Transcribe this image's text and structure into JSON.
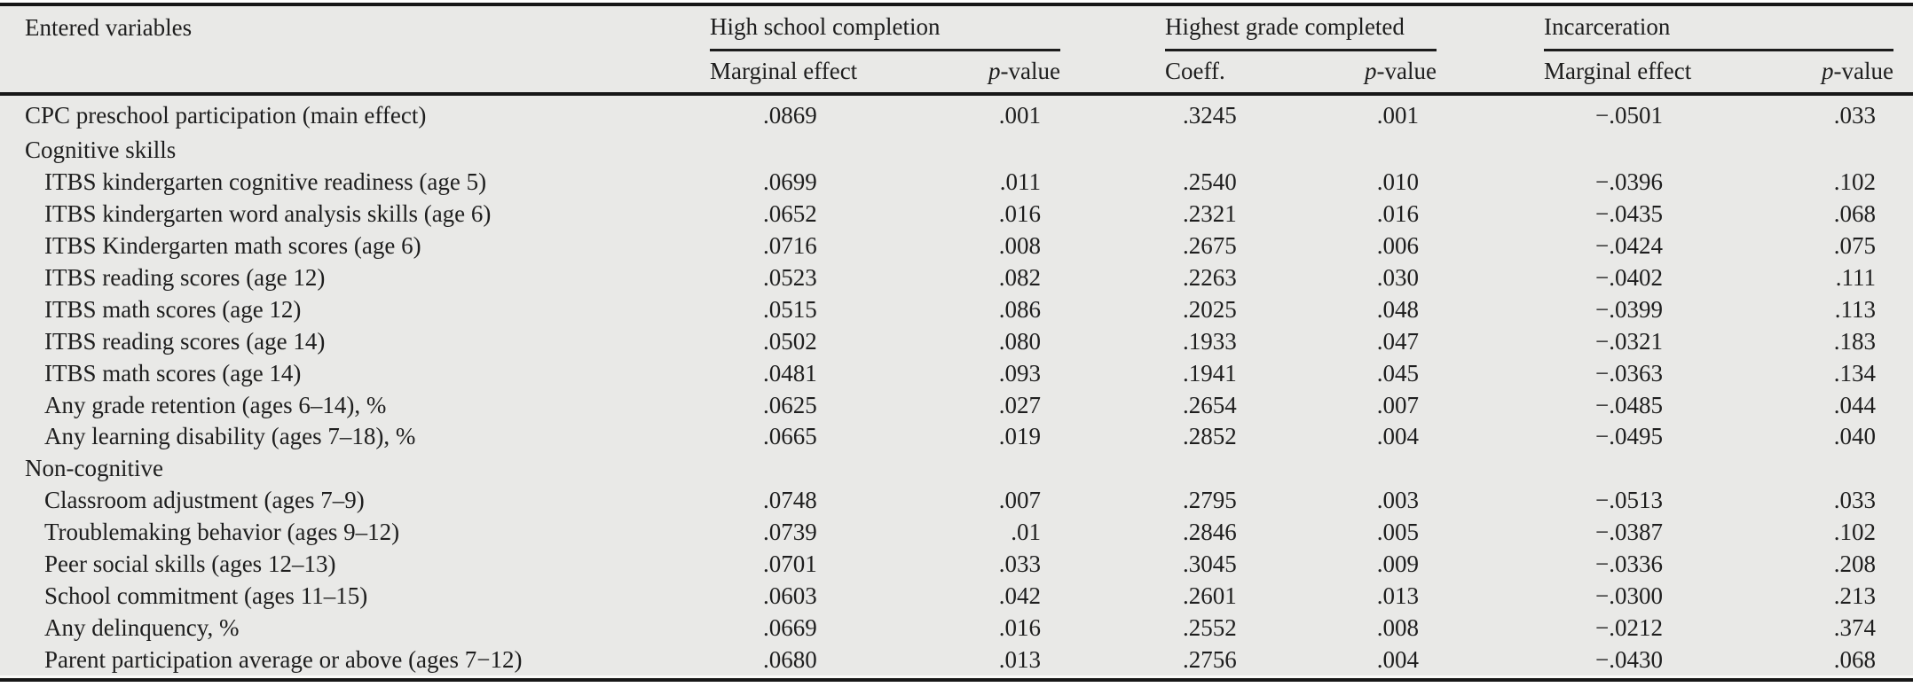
{
  "table": {
    "label_header": "Entered variables",
    "groups": [
      {
        "label": "High school completion",
        "sub1": "Marginal effect"
      },
      {
        "label": "Highest grade completed",
        "sub1": "Coeff."
      },
      {
        "label": "Incarceration",
        "sub1": "Marginal effect"
      }
    ],
    "pvalue_label": {
      "italic": "p",
      "rest": "-value"
    },
    "rows": [
      {
        "label": "CPC preschool participation (main effect)",
        "indent": 0,
        "values": [
          ".0869",
          ".001",
          ".3245",
          ".001",
          "−.0501",
          ".033"
        ]
      },
      {
        "label": "Cognitive skills",
        "indent": 0,
        "section": true
      },
      {
        "label": "ITBS kindergarten cognitive readiness (age 5)",
        "indent": 1,
        "values": [
          ".0699",
          ".011",
          ".2540",
          ".010",
          "−.0396",
          ".102"
        ]
      },
      {
        "label": "ITBS kindergarten word analysis skills (age 6)",
        "indent": 1,
        "values": [
          ".0652",
          ".016",
          ".2321",
          ".016",
          "−.0435",
          ".068"
        ]
      },
      {
        "label": "ITBS Kindergarten math scores (age 6)",
        "indent": 1,
        "values": [
          ".0716",
          ".008",
          ".2675",
          ".006",
          "−.0424",
          ".075"
        ]
      },
      {
        "label": "ITBS reading scores (age 12)",
        "indent": 1,
        "values": [
          ".0523",
          ".082",
          ".2263",
          ".030",
          "−.0402",
          ".111"
        ]
      },
      {
        "label": "ITBS math scores (age 12)",
        "indent": 1,
        "values": [
          ".0515",
          ".086",
          ".2025",
          ".048",
          "−.0399",
          ".113"
        ]
      },
      {
        "label": "ITBS reading scores (age 14)",
        "indent": 1,
        "values": [
          ".0502",
          ".080",
          ".1933",
          ".047",
          "−.0321",
          ".183"
        ]
      },
      {
        "label": "ITBS math scores (age 14)",
        "indent": 1,
        "values": [
          ".0481",
          ".093",
          ".1941",
          ".045",
          "−.0363",
          ".134"
        ]
      },
      {
        "label": "Any grade retention (ages 6–14), %",
        "indent": 1,
        "values": [
          ".0625",
          ".027",
          ".2654",
          ".007",
          "−.0485",
          ".044"
        ]
      },
      {
        "label": "Any learning disability (ages 7–18), %",
        "indent": 1,
        "values": [
          ".0665",
          ".019",
          ".2852",
          ".004",
          "−.0495",
          ".040"
        ]
      },
      {
        "label": "Non-cognitive",
        "indent": 0,
        "section": true
      },
      {
        "label": "Classroom adjustment (ages 7–9)",
        "indent": 1,
        "values": [
          ".0748",
          ".007",
          ".2795",
          ".003",
          "−.0513",
          ".033"
        ]
      },
      {
        "label": "Troublemaking behavior (ages 9–12)",
        "indent": 1,
        "values": [
          ".0739",
          ".01",
          ".2846",
          ".005",
          "−.0387",
          ".102"
        ]
      },
      {
        "label": "Peer social skills (ages 12–13)",
        "indent": 1,
        "values": [
          ".0701",
          ".033",
          ".3045",
          ".009",
          "−.0336",
          ".208"
        ]
      },
      {
        "label": "School commitment (ages 11–15)",
        "indent": 1,
        "values": [
          ".0603",
          ".042",
          ".2601",
          ".013",
          "−.0300",
          ".213"
        ]
      },
      {
        "label": "Any delinquency, %",
        "indent": 1,
        "values": [
          ".0669",
          ".016",
          ".2552",
          ".008",
          "−.0212",
          ".374"
        ]
      },
      {
        "label": "Parent participation average or above (ages 7−12)",
        "indent": 1,
        "values": [
          ".0680",
          ".013",
          ".2756",
          ".004",
          "−.0430",
          ".068"
        ]
      }
    ]
  }
}
